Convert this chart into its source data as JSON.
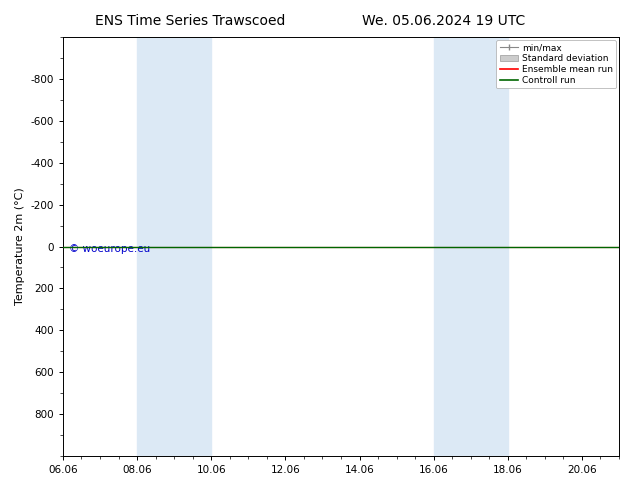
{
  "title_left": "ENS Time Series Trawscoed",
  "title_right": "We. 05.06.2024 19 UTC",
  "xlabel": "",
  "ylabel": "Temperature 2m (°C)",
  "ylim": [
    -1000,
    1000
  ],
  "yticks": [
    -800,
    -600,
    -400,
    -200,
    0,
    200,
    400,
    600,
    800
  ],
  "xtick_labels": [
    "06.06",
    "08.06",
    "10.06",
    "12.06",
    "14.06",
    "16.06",
    "18.06",
    "20.06"
  ],
  "xtick_positions": [
    0,
    2,
    4,
    6,
    8,
    10,
    12,
    14
  ],
  "background_color": "#ffffff",
  "plot_bg_color": "#ffffff",
  "shaded_bands": [
    {
      "x_start": 2,
      "x_end": 4,
      "color": "#dce9f5"
    },
    {
      "x_start": 10,
      "x_end": 12,
      "color": "#dce9f5"
    }
  ],
  "ensemble_mean_y": 0,
  "ensemble_mean_color": "#ff0000",
  "control_run_y": 0,
  "control_run_color": "#006600",
  "minmax_color": "#888888",
  "stddev_color": "#cccccc",
  "copyright_text": "© woeurope.eu",
  "copyright_color": "#0000cc",
  "legend_entries": [
    {
      "label": "min/max",
      "color": "#888888",
      "style": "line"
    },
    {
      "label": "Standard deviation",
      "color": "#cccccc",
      "style": "box"
    },
    {
      "label": "Ensemble mean run",
      "color": "#ff0000",
      "style": "line"
    },
    {
      "label": "Controll run",
      "color": "#006600",
      "style": "line"
    }
  ],
  "title_fontsize": 10,
  "axis_fontsize": 8,
  "tick_fontsize": 7.5
}
